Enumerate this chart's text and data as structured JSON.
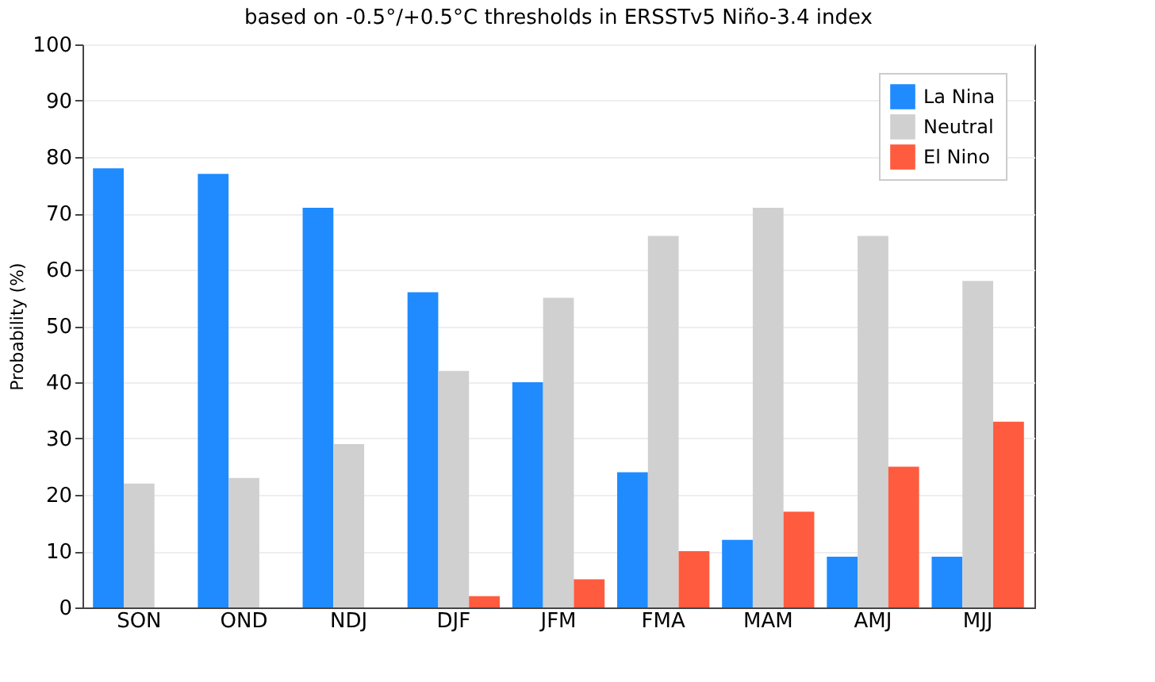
{
  "chart_data": {
    "type": "bar",
    "title": "based on -0.5°/+0.5°C thresholds in ERSSTv5 Niño-3.4 index",
    "ylabel": "Probability (%)",
    "categories": [
      "SON",
      "OND",
      "NDJ",
      "DJF",
      "JFM",
      "FMA",
      "MAM",
      "AMJ",
      "MJJ"
    ],
    "series": [
      {
        "name": "La Nina",
        "color": "#1f8bff",
        "values": [
          78,
          77,
          71,
          56,
          40,
          24,
          12,
          9,
          9
        ]
      },
      {
        "name": "Neutral",
        "color": "#d0d0d0",
        "values": [
          22,
          23,
          29,
          42,
          55,
          66,
          71,
          66,
          58
        ]
      },
      {
        "name": "El Nino",
        "color": "#ff5b3f",
        "values": [
          0,
          0,
          0,
          2,
          5,
          10,
          17,
          25,
          33
        ]
      }
    ],
    "ylim": [
      0,
      100
    ],
    "yticks": [
      0,
      10,
      20,
      30,
      40,
      50,
      60,
      70,
      80,
      90,
      100
    ],
    "grid": "y",
    "legend": "top right"
  }
}
